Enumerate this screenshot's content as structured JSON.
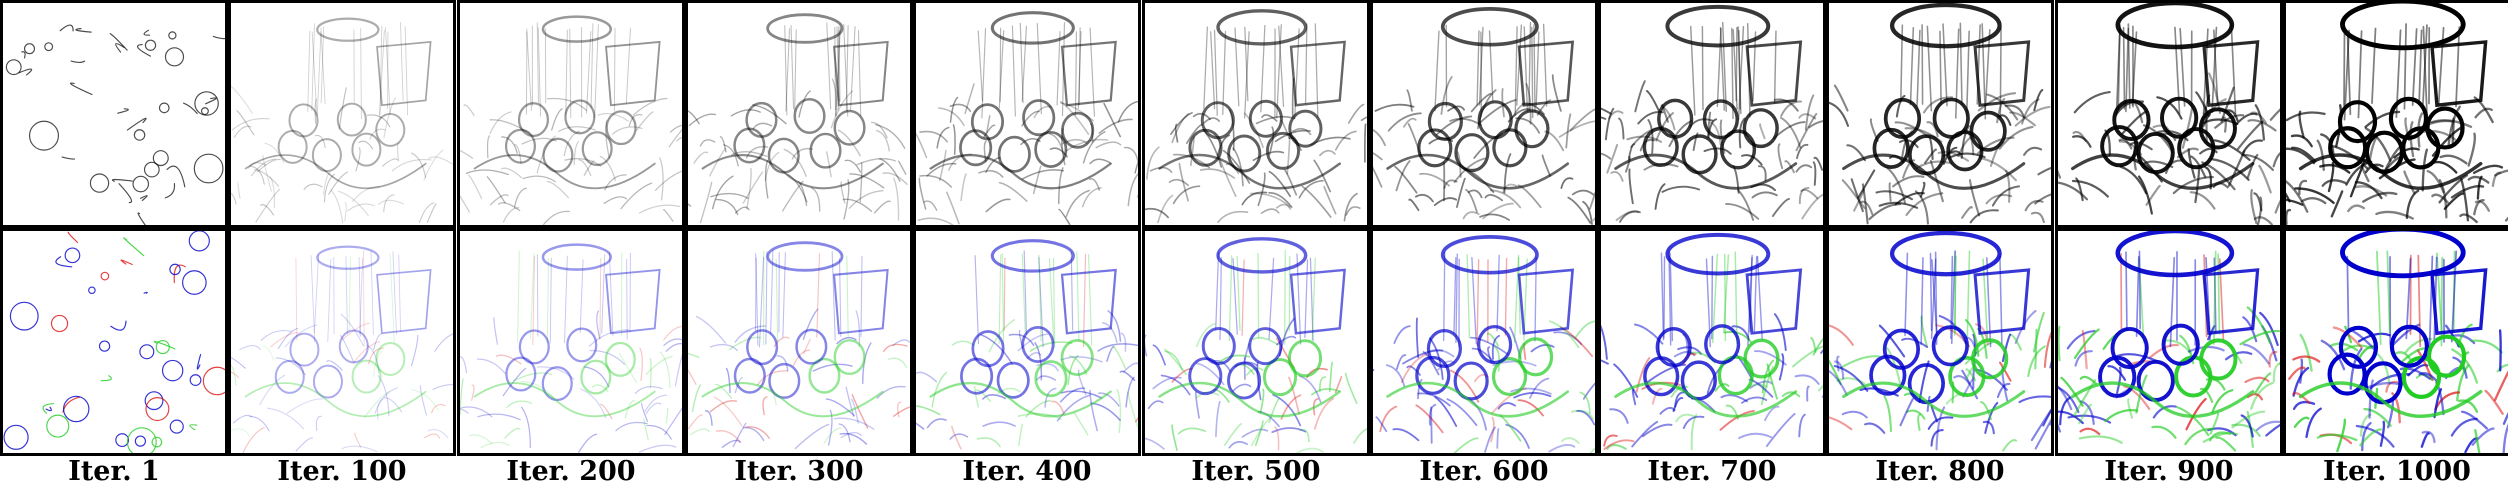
{
  "figure": {
    "columns": [
      {
        "label": "Iter. 1",
        "progress": 0.0
      },
      {
        "label": "Iter. 100",
        "progress": 0.1
      },
      {
        "label": "Iter. 200",
        "progress": 0.2
      },
      {
        "label": "Iter. 300",
        "progress": 0.3
      },
      {
        "label": "Iter. 400",
        "progress": 0.4
      },
      {
        "label": "Iter. 500",
        "progress": 0.5
      },
      {
        "label": "Iter. 600",
        "progress": 0.6
      },
      {
        "label": "Iter. 700",
        "progress": 0.7
      },
      {
        "label": "Iter. 800",
        "progress": 0.8
      },
      {
        "label": "Iter. 900",
        "progress": 0.9
      },
      {
        "label": "Iter. 1000",
        "progress": 1.0
      }
    ],
    "rows": [
      {
        "name": "grayscale-strokes",
        "colors": [
          "#000000"
        ]
      },
      {
        "name": "colored-strokes",
        "colors": [
          "#0000cc",
          "#22cc22",
          "#dd1111"
        ]
      }
    ]
  }
}
